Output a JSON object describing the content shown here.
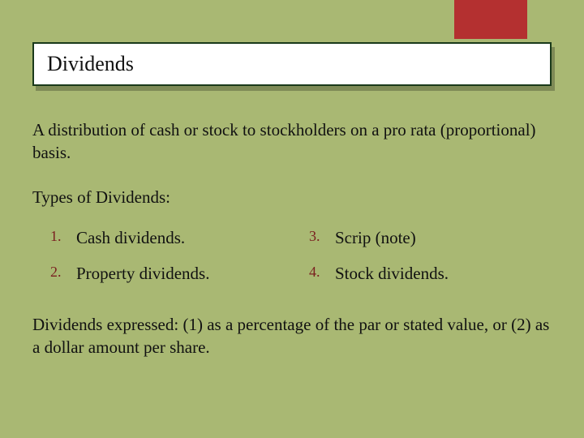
{
  "colors": {
    "background": "#a9b873",
    "accent_block": "#b43030",
    "title_bg": "#ffffff",
    "title_border": "#1a3a1a",
    "title_shadow": "rgba(0,0,0,0.25)",
    "text": "#111111",
    "list_number": "#7a2020"
  },
  "typography": {
    "body_font": "Georgia, serif",
    "title_size_pt": 20,
    "body_size_pt": 16
  },
  "title": "Dividends",
  "description": "A distribution of cash or stock to stockholders on a pro rata (proportional) basis.",
  "subheading": "Types of Dividends:",
  "types": [
    {
      "num": "1.",
      "label": "Cash dividends."
    },
    {
      "num": "2.",
      "label": "Property dividends."
    },
    {
      "num": "3.",
      "label": "Scrip (note)"
    },
    {
      "num": "4.",
      "label": "Stock dividends."
    }
  ],
  "footer": "Dividends expressed: (1) as a percentage of the par or stated value, or (2) as a dollar amount per share."
}
